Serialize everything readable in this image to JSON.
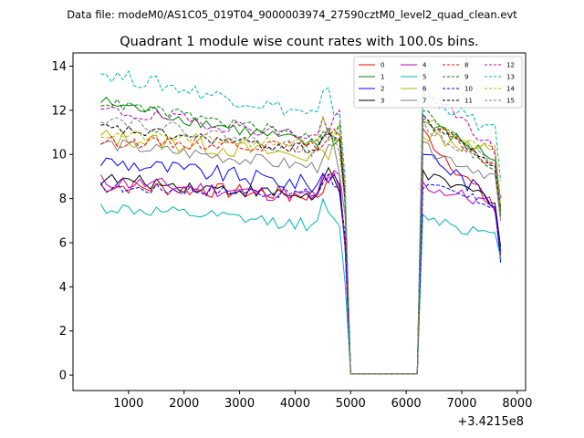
{
  "suptitle": "Data file: modeM0/AS1C05_019T04_9000003974_27590cztM0_level2_quad_clean.evt",
  "chart_data": {
    "type": "line",
    "title": "Quadrant 1 module wise count rates with 100.0s bins.",
    "xlabel": "",
    "ylabel": "",
    "x_offset_label": "+3.4215e8",
    "xlim": [
      0,
      8150
    ],
    "ylim": [
      -0.7,
      14.6
    ],
    "xticks": [
      1000,
      2000,
      3000,
      4000,
      5000,
      6000,
      7000,
      8000
    ],
    "yticks": [
      0,
      2,
      4,
      6,
      8,
      10,
      12,
      14
    ],
    "grid": false,
    "legend_placement": "top-right",
    "legend_columns": 4,
    "gap": {
      "start": 5000,
      "end": 6200,
      "value": 0.05
    },
    "segment1": {
      "start": 500,
      "end": 4800,
      "step": 100
    },
    "segment2": {
      "start": 6300,
      "end": 7600,
      "step": 100
    },
    "series": [
      {
        "name": "0",
        "color": "#ff0000",
        "dash": "solid",
        "s1_start": 8.6,
        "s1_end": 8.1,
        "s2_start": 11.0,
        "s2_end": 7.5,
        "amp": 0.35,
        "end": 5.4
      },
      {
        "name": "1",
        "color": "#008000",
        "dash": "solid",
        "s1_start": 12.4,
        "s1_end": 10.2,
        "s2_start": 11.5,
        "s2_end": 9.8,
        "amp": 0.3,
        "end": 7.2
      },
      {
        "name": "2",
        "color": "#0000ff",
        "dash": "solid",
        "s1_start": 9.7,
        "s1_end": 8.5,
        "s2_start": 10.2,
        "s2_end": 7.8,
        "amp": 0.4,
        "end": 5.1
      },
      {
        "name": "3",
        "color": "#000000",
        "dash": "solid",
        "s1_start": 8.9,
        "s1_end": 8.0,
        "s2_start": 9.0,
        "s2_end": 8.0,
        "amp": 0.3,
        "end": 5.8
      },
      {
        "name": "4",
        "color": "#c000c0",
        "dash": "solid",
        "s1_start": 8.8,
        "s1_end": 8.0,
        "s2_start": 8.6,
        "s2_end": 7.7,
        "amp": 0.35,
        "end": 5.5
      },
      {
        "name": "5",
        "color": "#00b4b4",
        "dash": "solid",
        "s1_start": 7.6,
        "s1_end": 6.7,
        "s2_start": 7.3,
        "s2_end": 6.2,
        "amp": 0.3,
        "end": 5.3
      },
      {
        "name": "6",
        "color": "#b4b400",
        "dash": "solid",
        "s1_start": 10.8,
        "s1_end": 9.8,
        "s2_start": 11.0,
        "s2_end": 10.0,
        "amp": 0.4,
        "end": 7.5
      },
      {
        "name": "7",
        "color": "#7f7f7f",
        "dash": "solid",
        "s1_start": 10.5,
        "s1_end": 9.3,
        "s2_start": 10.3,
        "s2_end": 9.0,
        "amp": 0.3,
        "end": 7.0
      },
      {
        "name": "8",
        "color": "#ff0000",
        "dash": "dashed",
        "s1_start": 10.6,
        "s1_end": 10.3,
        "s2_start": 11.5,
        "s2_end": 9.5,
        "amp": 0.25,
        "end": 7.3
      },
      {
        "name": "9",
        "color": "#008000",
        "dash": "dashed",
        "s1_start": 12.4,
        "s1_end": 10.6,
        "s2_start": 12.0,
        "s2_end": 9.3,
        "amp": 0.25,
        "end": 7.4
      },
      {
        "name": "10",
        "color": "#0000ff",
        "dash": "dashed",
        "s1_start": 8.5,
        "s1_end": 8.2,
        "s2_start": 8.6,
        "s2_end": 7.7,
        "amp": 0.25,
        "end": 5.6
      },
      {
        "name": "11",
        "color": "#000000",
        "dash": "dashed",
        "s1_start": 11.2,
        "s1_end": 10.1,
        "s2_start": 11.6,
        "s2_end": 9.6,
        "amp": 0.25,
        "end": 7.6
      },
      {
        "name": "12",
        "color": "#c000c0",
        "dash": "dashed",
        "s1_start": 12.0,
        "s1_end": 10.7,
        "s2_start": 13.0,
        "s2_end": 10.2,
        "amp": 0.3,
        "end": 8.0
      },
      {
        "name": "13",
        "color": "#00b4b4",
        "dash": "dashed",
        "s1_start": 13.7,
        "s1_end": 11.6,
        "s2_start": 12.8,
        "s2_end": 11.0,
        "amp": 0.35,
        "end": 8.8
      },
      {
        "name": "14",
        "color": "#b4b400",
        "dash": "dashed",
        "s1_start": 10.9,
        "s1_end": 10.4,
        "s2_start": 11.6,
        "s2_end": 10.2,
        "amp": 0.25,
        "end": 7.7
      },
      {
        "name": "15",
        "color": "#7f7f7f",
        "dash": "dashed",
        "s1_start": 11.7,
        "s1_end": 10.0,
        "s2_start": 11.3,
        "s2_end": 9.5,
        "amp": 0.3,
        "end": 7.3
      }
    ]
  }
}
